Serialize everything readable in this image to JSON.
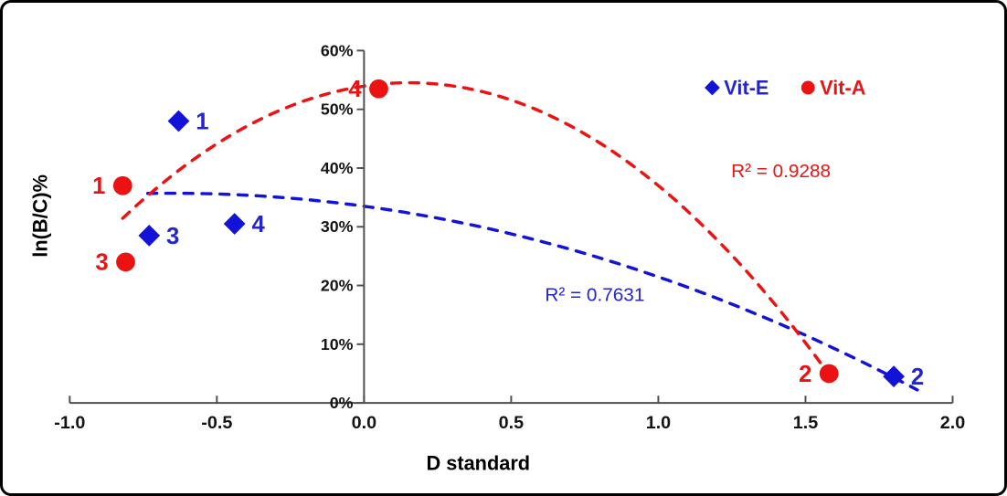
{
  "figure": {
    "background": "#ffffff",
    "border_color": "#000000",
    "axis_line_color": "#4f4f4f"
  },
  "chart_data": {
    "type": "scatter",
    "title": "",
    "xlabel": "D standard",
    "ylabel": "ln(B/C)%",
    "xlim": [
      -1.0,
      2.0
    ],
    "ylim_pct": [
      0,
      60
    ],
    "grid": false,
    "legend_position": "top-right-inside",
    "x_ticks": [
      {
        "v": -1.0,
        "label": "-1.0"
      },
      {
        "v": -0.5,
        "label": "-0.5"
      },
      {
        "v": 0.0,
        "label": "0.0"
      },
      {
        "v": 0.5,
        "label": "0.5"
      },
      {
        "v": 1.0,
        "label": "1.0"
      },
      {
        "v": 1.5,
        "label": "1.5"
      },
      {
        "v": 2.0,
        "label": "2.0"
      }
    ],
    "y_ticks": [
      {
        "pct": 0,
        "label": "0%"
      },
      {
        "pct": 10,
        "label": "10%"
      },
      {
        "pct": 20,
        "label": "20%"
      },
      {
        "pct": 30,
        "label": "30%"
      },
      {
        "pct": 40,
        "label": "40%"
      },
      {
        "pct": 50,
        "label": "50%"
      },
      {
        "pct": 60,
        "label": "60%"
      }
    ],
    "series": [
      {
        "name": "Vit-E",
        "marker": "diamond",
        "marker_color": "#1212d8",
        "text_color": "#2525cc",
        "label_side": "right",
        "r_squared": "R² = 0.7631",
        "trendline": {
          "style": "dashed",
          "poly_coeffs_pct": [
            -5.235,
            -6.8,
            33.5
          ],
          "x_range": [
            -0.735,
            1.88
          ]
        },
        "points": [
          {
            "label": "1",
            "x": -0.63,
            "y_pct": 48.0
          },
          {
            "label": "3",
            "x": -0.73,
            "y_pct": 28.5
          },
          {
            "label": "4",
            "x": -0.44,
            "y_pct": 30.5
          },
          {
            "label": "2",
            "x": 1.8,
            "y_pct": 4.5
          }
        ]
      },
      {
        "name": "Vit-A",
        "marker": "circle",
        "marker_color": "#ed1212",
        "text_color": "#e81414",
        "label_side": "left",
        "r_squared": "R² = 0.9288",
        "trendline": {
          "style": "dashed",
          "poly_coeffs_pct": [
            -24.4,
            7.45,
            53.96
          ],
          "x_range": [
            -0.82,
            1.56
          ]
        },
        "points": [
          {
            "label": "1",
            "x": -0.82,
            "y_pct": 37.0
          },
          {
            "label": "3",
            "x": -0.81,
            "y_pct": 24.0
          },
          {
            "label": "4",
            "x": 0.05,
            "y_pct": 53.5
          },
          {
            "label": "2",
            "x": 1.58,
            "y_pct": 5.0
          }
        ]
      }
    ]
  }
}
